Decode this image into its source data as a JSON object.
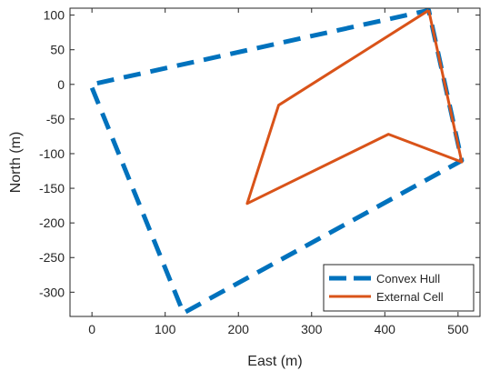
{
  "chart_data": {
    "type": "line",
    "xlabel": "East (m)",
    "ylabel": "North (m)",
    "xlim": [
      -30,
      530
    ],
    "ylim": [
      -335,
      110
    ],
    "xticks": [
      0,
      100,
      200,
      300,
      400,
      500
    ],
    "yticks": [
      100,
      50,
      0,
      -50,
      -100,
      -150,
      -200,
      -250,
      -300
    ],
    "grid": false,
    "legend_position": "bottom-right",
    "series": [
      {
        "name": "Convex Hull",
        "style": "dashed",
        "color": "#0072BD",
        "points": [
          [
            0,
            -5
          ],
          [
            125,
            -330
          ],
          [
            505,
            -110
          ],
          [
            460,
            107
          ],
          [
            0,
            0
          ]
        ]
      },
      {
        "name": "External Cell",
        "style": "solid",
        "color": "#D95319",
        "points": [
          [
            460,
            107
          ],
          [
            505,
            -112
          ],
          [
            405,
            -72
          ],
          [
            212,
            -172
          ],
          [
            255,
            -30
          ],
          [
            460,
            107
          ]
        ]
      }
    ]
  }
}
